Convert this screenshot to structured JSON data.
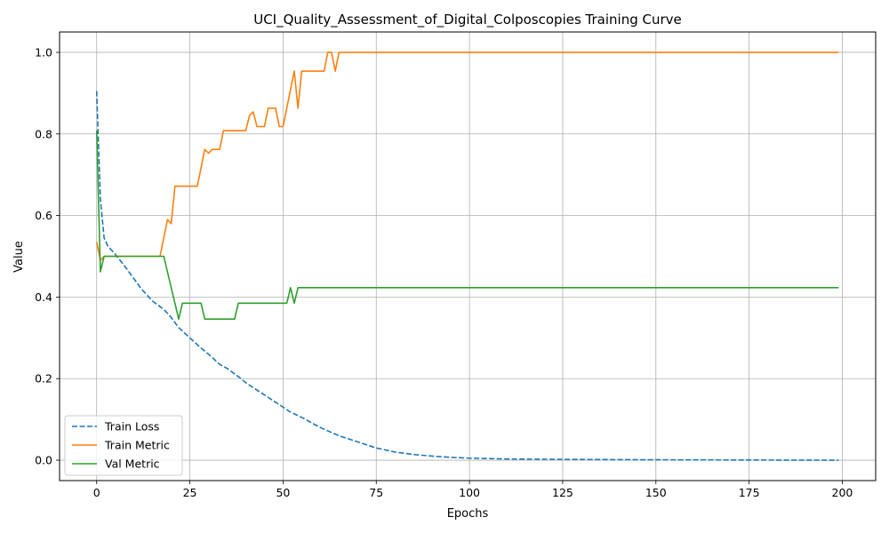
{
  "chart_data": {
    "type": "line",
    "title": "UCI_Quality_Assessment_of_Digital_Colposcopies Training Curve",
    "xlabel": "Epochs",
    "ylabel": "Value",
    "xlim": [
      -9.95,
      208.95
    ],
    "ylim": [
      -0.05,
      1.05
    ],
    "xticks": [
      0,
      25,
      50,
      75,
      100,
      125,
      150,
      175,
      200
    ],
    "yticks": [
      0.0,
      0.2,
      0.4,
      0.6,
      0.8,
      1.0
    ],
    "grid": true,
    "legend_position": "lower-left",
    "series": [
      {
        "name": "Train Loss",
        "color": "#1f77b4",
        "style": "dashed",
        "points": [
          [
            0,
            0.905
          ],
          [
            1,
            0.64
          ],
          [
            2,
            0.545
          ],
          [
            3,
            0.525
          ],
          [
            5,
            0.505
          ],
          [
            8,
            0.47
          ],
          [
            10,
            0.445
          ],
          [
            12,
            0.42
          ],
          [
            15,
            0.39
          ],
          [
            18,
            0.37
          ],
          [
            20,
            0.35
          ],
          [
            22,
            0.325
          ],
          [
            25,
            0.3
          ],
          [
            28,
            0.275
          ],
          [
            30,
            0.26
          ],
          [
            33,
            0.235
          ],
          [
            35,
            0.225
          ],
          [
            38,
            0.205
          ],
          [
            40,
            0.19
          ],
          [
            42,
            0.178
          ],
          [
            45,
            0.16
          ],
          [
            48,
            0.142
          ],
          [
            50,
            0.13
          ],
          [
            52,
            0.118
          ],
          [
            55,
            0.105
          ],
          [
            58,
            0.09
          ],
          [
            60,
            0.08
          ],
          [
            63,
            0.068
          ],
          [
            65,
            0.06
          ],
          [
            70,
            0.045
          ],
          [
            75,
            0.03
          ],
          [
            80,
            0.02
          ],
          [
            85,
            0.014
          ],
          [
            90,
            0.01
          ],
          [
            95,
            0.007
          ],
          [
            100,
            0.005
          ],
          [
            110,
            0.003
          ],
          [
            125,
            0.002
          ],
          [
            150,
            0.001
          ],
          [
            175,
            0.0005
          ],
          [
            199,
            0.0
          ]
        ]
      },
      {
        "name": "Train Metric",
        "color": "#ff7f0e",
        "style": "solid",
        "points": [
          [
            0,
            0.535
          ],
          [
            1,
            0.49
          ],
          [
            2,
            0.5
          ],
          [
            17,
            0.5
          ],
          [
            19,
            0.59
          ],
          [
            20,
            0.58
          ],
          [
            21,
            0.672
          ],
          [
            27,
            0.672
          ],
          [
            29,
            0.762
          ],
          [
            30,
            0.753
          ],
          [
            31,
            0.762
          ],
          [
            33,
            0.762
          ],
          [
            34,
            0.808
          ],
          [
            40,
            0.808
          ],
          [
            41,
            0.845
          ],
          [
            42,
            0.854
          ],
          [
            43,
            0.818
          ],
          [
            45,
            0.818
          ],
          [
            46,
            0.863
          ],
          [
            48,
            0.863
          ],
          [
            49,
            0.818
          ],
          [
            50,
            0.818
          ],
          [
            53,
            0.954
          ],
          [
            54,
            0.863
          ],
          [
            55,
            0.954
          ],
          [
            61,
            0.954
          ],
          [
            62,
            1.0
          ],
          [
            63,
            1.0
          ],
          [
            64,
            0.954
          ],
          [
            65,
            1.0
          ],
          [
            199,
            1.0
          ]
        ]
      },
      {
        "name": "Val Metric",
        "color": "#2ca02c",
        "style": "solid",
        "points": [
          [
            0,
            0.808
          ],
          [
            1,
            0.462
          ],
          [
            2,
            0.5
          ],
          [
            18,
            0.5
          ],
          [
            22,
            0.346
          ],
          [
            23,
            0.385
          ],
          [
            28,
            0.385
          ],
          [
            29,
            0.346
          ],
          [
            37,
            0.346
          ],
          [
            38,
            0.385
          ],
          [
            51,
            0.385
          ],
          [
            52,
            0.423
          ],
          [
            53,
            0.385
          ],
          [
            54,
            0.423
          ],
          [
            199,
            0.423
          ]
        ]
      }
    ]
  }
}
